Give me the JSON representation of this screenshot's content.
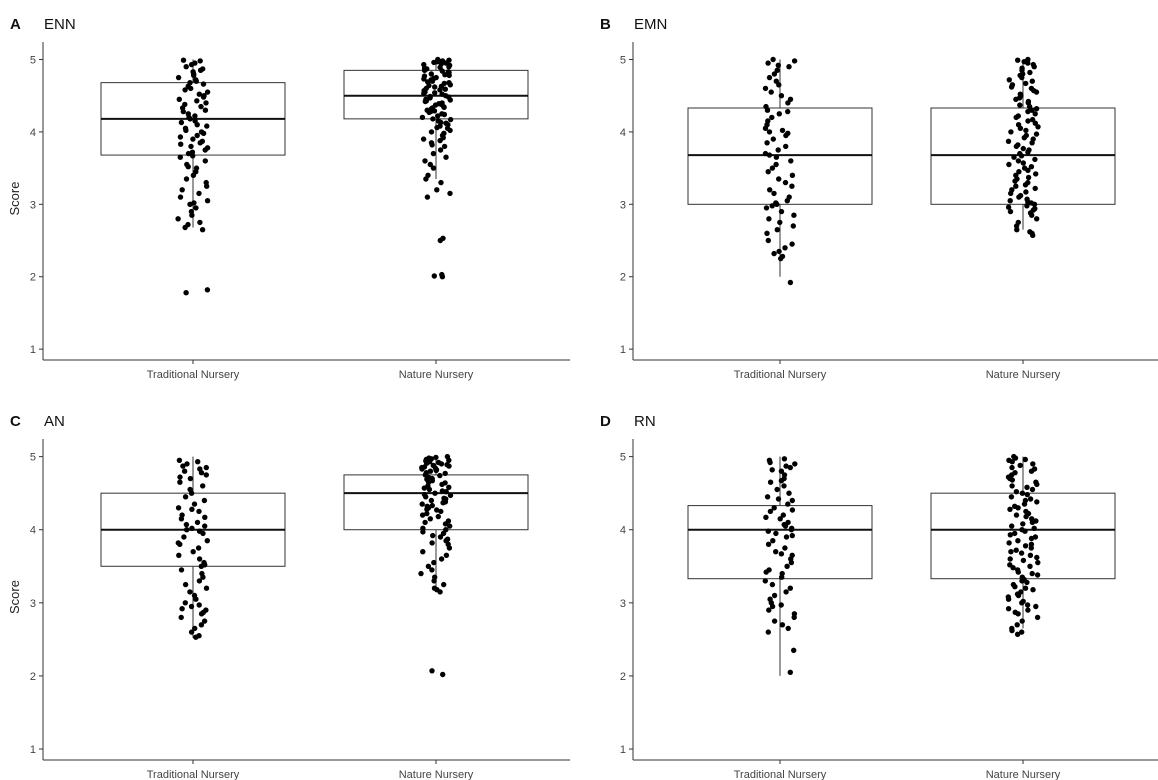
{
  "figure": {
    "background": "#ffffff",
    "box_stroke": "#333333",
    "point_color": "#000000"
  },
  "chart_data": [
    {
      "type": "box",
      "panel": "A",
      "title": "ENN",
      "categories": [
        "Traditional Nursery",
        "Nature Nursery"
      ],
      "ylabel": "Score",
      "ylim": [
        0.85,
        5.2
      ],
      "yticks": [
        1,
        2,
        3,
        4,
        5
      ],
      "grid": false,
      "boxes": [
        {
          "q1": 3.68,
          "median": 4.18,
          "q3": 4.68,
          "whisker_low": 2.68,
          "whisker_high": 5.0
        },
        {
          "q1": 4.18,
          "median": 4.5,
          "q3": 4.85,
          "whisker_low": 3.35,
          "whisker_high": 5.0
        }
      ],
      "points": [
        [
          4.99,
          4.98,
          4.95,
          4.93,
          4.9,
          4.87,
          4.85,
          4.83,
          4.8,
          4.78,
          4.75,
          4.72,
          4.7,
          4.68,
          4.66,
          4.63,
          4.6,
          4.58,
          4.55,
          4.52,
          4.5,
          4.48,
          4.45,
          4.43,
          4.4,
          4.38,
          4.35,
          4.33,
          4.3,
          4.28,
          4.25,
          4.22,
          4.2,
          4.18,
          4.15,
          4.13,
          4.1,
          4.08,
          4.05,
          4.02,
          4.0,
          3.98,
          3.95,
          3.93,
          3.9,
          3.87,
          3.85,
          3.83,
          3.8,
          3.78,
          3.75,
          3.72,
          3.7,
          3.67,
          3.65,
          3.6,
          3.55,
          3.52,
          3.5,
          3.45,
          3.4,
          3.35,
          3.3,
          3.25,
          3.2,
          3.15,
          3.1,
          3.05,
          3.02,
          3.0,
          2.95,
          2.9,
          2.85,
          2.8,
          2.75,
          2.72,
          2.68,
          2.65,
          1.82,
          1.78
        ],
        [
          5.0,
          4.99,
          4.98,
          4.97,
          4.96,
          4.95,
          4.94,
          4.93,
          4.92,
          4.9,
          4.89,
          4.88,
          4.87,
          4.85,
          4.84,
          4.83,
          4.82,
          4.8,
          4.79,
          4.78,
          4.77,
          4.75,
          4.74,
          4.73,
          4.72,
          4.7,
          4.69,
          4.68,
          4.67,
          4.65,
          4.64,
          4.63,
          4.62,
          4.6,
          4.59,
          4.58,
          4.57,
          4.55,
          4.54,
          4.53,
          4.52,
          4.5,
          4.49,
          4.48,
          4.47,
          4.45,
          4.44,
          4.43,
          4.42,
          4.4,
          4.39,
          4.38,
          4.37,
          4.35,
          4.34,
          4.33,
          4.32,
          4.3,
          4.29,
          4.28,
          4.27,
          4.25,
          4.24,
          4.22,
          4.2,
          4.18,
          4.17,
          4.15,
          4.13,
          4.12,
          4.1,
          4.08,
          4.06,
          4.05,
          4.02,
          4.0,
          3.98,
          3.95,
          3.92,
          3.9,
          3.88,
          3.85,
          3.82,
          3.8,
          3.75,
          3.7,
          3.65,
          3.6,
          3.55,
          3.5,
          3.4,
          3.35,
          3.3,
          3.2,
          3.15,
          3.1,
          2.53,
          2.5,
          2.03,
          2.01,
          2.0
        ]
      ]
    },
    {
      "type": "box",
      "panel": "B",
      "title": "EMN",
      "categories": [
        "Traditional Nursery",
        "Nature Nursery"
      ],
      "ylabel": "",
      "ylim": [
        0.85,
        5.2
      ],
      "yticks": [
        1,
        2,
        3,
        4,
        5
      ],
      "grid": false,
      "boxes": [
        {
          "q1": 3.0,
          "median": 3.68,
          "q3": 4.33,
          "whisker_low": 2.0,
          "whisker_high": 5.0
        },
        {
          "q1": 3.0,
          "median": 3.68,
          "q3": 4.33,
          "whisker_low": 2.65,
          "whisker_high": 5.0
        }
      ],
      "points": [
        [
          5.0,
          4.98,
          4.95,
          4.92,
          4.9,
          4.85,
          4.8,
          4.75,
          4.7,
          4.65,
          4.6,
          4.55,
          4.5,
          4.45,
          4.4,
          4.35,
          4.3,
          4.28,
          4.25,
          4.2,
          4.15,
          4.1,
          4.05,
          4.02,
          4.0,
          3.98,
          3.95,
          3.9,
          3.85,
          3.8,
          3.75,
          3.7,
          3.68,
          3.65,
          3.6,
          3.55,
          3.5,
          3.45,
          3.4,
          3.35,
          3.3,
          3.25,
          3.2,
          3.15,
          3.1,
          3.05,
          3.02,
          3.0,
          2.98,
          2.95,
          2.9,
          2.85,
          2.8,
          2.75,
          2.7,
          2.65,
          2.6,
          2.5,
          2.45,
          2.4,
          2.35,
          2.32,
          2.28,
          2.25,
          1.92
        ],
        [
          5.0,
          4.99,
          4.97,
          4.95,
          4.93,
          4.9,
          4.88,
          4.85,
          4.82,
          4.8,
          4.78,
          4.75,
          4.72,
          4.7,
          4.67,
          4.65,
          4.62,
          4.6,
          4.57,
          4.55,
          4.52,
          4.5,
          4.47,
          4.45,
          4.42,
          4.4,
          4.37,
          4.35,
          4.32,
          4.3,
          4.28,
          4.25,
          4.22,
          4.2,
          4.17,
          4.15,
          4.12,
          4.1,
          4.07,
          4.05,
          4.02,
          4.0,
          3.97,
          3.95,
          3.92,
          3.9,
          3.87,
          3.85,
          3.82,
          3.8,
          3.77,
          3.75,
          3.72,
          3.7,
          3.67,
          3.65,
          3.62,
          3.6,
          3.57,
          3.55,
          3.52,
          3.5,
          3.47,
          3.45,
          3.42,
          3.4,
          3.37,
          3.35,
          3.32,
          3.3,
          3.27,
          3.25,
          3.22,
          3.2,
          3.17,
          3.15,
          3.12,
          3.1,
          3.07,
          3.05,
          3.03,
          3.02,
          3.0,
          2.98,
          2.96,
          2.94,
          2.92,
          2.9,
          2.88,
          2.85,
          2.8,
          2.75,
          2.7,
          2.65,
          2.62,
          2.6,
          2.57
        ]
      ]
    },
    {
      "type": "box",
      "panel": "C",
      "title": "AN",
      "categories": [
        "Traditional Nursery",
        "Nature Nursery"
      ],
      "ylabel": "Score",
      "ylim": [
        0.85,
        5.2
      ],
      "yticks": [
        1,
        2,
        3,
        4,
        5
      ],
      "grid": false,
      "boxes": [
        {
          "q1": 3.5,
          "median": 4.0,
          "q3": 4.5,
          "whisker_low": 2.52,
          "whisker_high": 5.0
        },
        {
          "q1": 4.0,
          "median": 4.5,
          "q3": 4.75,
          "whisker_low": 3.15,
          "whisker_high": 5.0
        }
      ],
      "points": [
        [
          4.95,
          4.93,
          4.9,
          4.87,
          4.85,
          4.83,
          4.8,
          4.78,
          4.75,
          4.72,
          4.7,
          4.65,
          4.6,
          4.55,
          4.5,
          4.45,
          4.4,
          4.35,
          4.3,
          4.28,
          4.25,
          4.2,
          4.17,
          4.15,
          4.1,
          4.07,
          4.05,
          4.02,
          4.0,
          3.98,
          3.95,
          3.9,
          3.85,
          3.82,
          3.8,
          3.75,
          3.7,
          3.65,
          3.6,
          3.55,
          3.52,
          3.5,
          3.45,
          3.4,
          3.35,
          3.3,
          3.25,
          3.2,
          3.15,
          3.1,
          3.05,
          3.0,
          2.97,
          2.95,
          2.92,
          2.9,
          2.87,
          2.85,
          2.8,
          2.75,
          2.7,
          2.65,
          2.6,
          2.55,
          2.53
        ],
        [
          5.0,
          4.99,
          4.98,
          4.97,
          4.96,
          4.95,
          4.94,
          4.93,
          4.92,
          4.91,
          4.9,
          4.89,
          4.88,
          4.87,
          4.86,
          4.85,
          4.84,
          4.83,
          4.82,
          4.81,
          4.8,
          4.78,
          4.77,
          4.75,
          4.74,
          4.72,
          4.7,
          4.69,
          4.67,
          4.65,
          4.64,
          4.62,
          4.6,
          4.58,
          4.57,
          4.55,
          4.53,
          4.52,
          4.5,
          4.48,
          4.47,
          4.45,
          4.43,
          4.42,
          4.4,
          4.38,
          4.37,
          4.35,
          4.33,
          4.32,
          4.3,
          4.28,
          4.27,
          4.25,
          4.22,
          4.2,
          4.18,
          4.15,
          4.12,
          4.1,
          4.08,
          4.05,
          4.02,
          4.0,
          3.97,
          3.95,
          3.92,
          3.9,
          3.87,
          3.85,
          3.82,
          3.8,
          3.75,
          3.7,
          3.65,
          3.6,
          3.55,
          3.5,
          3.45,
          3.4,
          3.35,
          3.3,
          3.25,
          3.2,
          3.18,
          3.15,
          2.07,
          2.02
        ]
      ]
    },
    {
      "type": "box",
      "panel": "D",
      "title": "RN",
      "categories": [
        "Traditional Nursery",
        "Nature Nursery"
      ],
      "ylabel": "",
      "ylim": [
        0.85,
        5.2
      ],
      "yticks": [
        1,
        2,
        3,
        4,
        5
      ],
      "grid": false,
      "boxes": [
        {
          "q1": 3.33,
          "median": 4.0,
          "q3": 4.33,
          "whisker_low": 2.0,
          "whisker_high": 5.0
        },
        {
          "q1": 3.33,
          "median": 4.0,
          "q3": 4.5,
          "whisker_low": 2.65,
          "whisker_high": 5.0
        }
      ],
      "points": [
        [
          4.97,
          4.95,
          4.92,
          4.9,
          4.87,
          4.85,
          4.82,
          4.8,
          4.75,
          4.7,
          4.67,
          4.65,
          4.6,
          4.55,
          4.5,
          4.45,
          4.42,
          4.4,
          4.35,
          4.3,
          4.27,
          4.25,
          4.2,
          4.17,
          4.15,
          4.1,
          4.07,
          4.05,
          4.02,
          4.0,
          3.98,
          3.95,
          3.92,
          3.9,
          3.85,
          3.8,
          3.75,
          3.7,
          3.67,
          3.65,
          3.6,
          3.55,
          3.5,
          3.45,
          3.42,
          3.4,
          3.35,
          3.3,
          3.25,
          3.2,
          3.15,
          3.1,
          3.05,
          3.0,
          2.97,
          2.95,
          2.9,
          2.85,
          2.8,
          2.75,
          2.7,
          2.65,
          2.6,
          2.35,
          2.05
        ],
        [
          5.0,
          4.98,
          4.96,
          4.95,
          4.93,
          4.9,
          4.88,
          4.85,
          4.83,
          4.8,
          4.78,
          4.75,
          4.72,
          4.7,
          4.68,
          4.65,
          4.62,
          4.6,
          4.58,
          4.55,
          4.52,
          4.5,
          4.48,
          4.45,
          4.42,
          4.4,
          4.38,
          4.35,
          4.32,
          4.3,
          4.28,
          4.25,
          4.22,
          4.2,
          4.18,
          4.15,
          4.12,
          4.1,
          4.08,
          4.05,
          4.02,
          4.0,
          3.98,
          3.95,
          3.93,
          3.9,
          3.88,
          3.85,
          3.82,
          3.8,
          3.78,
          3.75,
          3.72,
          3.7,
          3.68,
          3.65,
          3.62,
          3.6,
          3.58,
          3.55,
          3.52,
          3.5,
          3.48,
          3.45,
          3.42,
          3.4,
          3.38,
          3.35,
          3.32,
          3.3,
          3.28,
          3.25,
          3.22,
          3.2,
          3.18,
          3.15,
          3.12,
          3.1,
          3.08,
          3.05,
          3.02,
          3.0,
          2.97,
          2.95,
          2.92,
          2.9,
          2.87,
          2.85,
          2.8,
          2.75,
          2.7,
          2.65,
          2.62,
          2.6,
          2.57
        ]
      ]
    }
  ]
}
